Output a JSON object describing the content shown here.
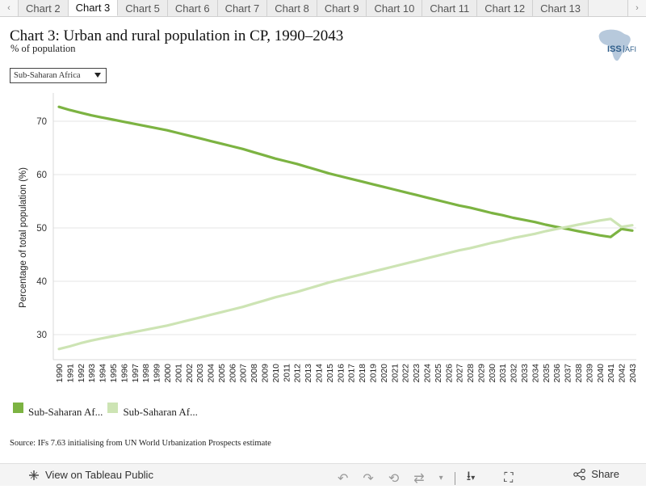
{
  "tabs": {
    "prev_arrow": "‹",
    "next_arrow": "›",
    "items": [
      "Chart 2",
      "Chart 3",
      "Chart 5",
      "Chart 6",
      "Chart 7",
      "Chart 8",
      "Chart 9",
      "Chart 10",
      "Chart 11",
      "Chart 12",
      "Chart 13"
    ],
    "active": "Chart 3"
  },
  "header": {
    "title": "Chart 3: Urban and rural population in CP, 1990–2043",
    "subtitle": "% of population",
    "logo_text": "ISS",
    "logo_text2": "AFI"
  },
  "filter": {
    "selected": "Sub-Saharan Africa"
  },
  "legend": {
    "items": [
      {
        "label": "Sub-Saharan Af...",
        "color": "#7cb342"
      },
      {
        "label": "Sub-Saharan Af...",
        "color": "#cde4b4"
      }
    ]
  },
  "source": "Source: IFs 7.63 initialising from UN World Urbanization Prospects estimate",
  "footer": {
    "view_label": "View on Tableau Public",
    "share_label": "Share"
  },
  "chart_data": {
    "type": "line",
    "title": "Chart 3: Urban and rural population in CP, 1990–2043",
    "ylabel": "Percentage of total population (%)",
    "xlabel": "",
    "ylim": [
      25,
      75
    ],
    "yticks": [
      30,
      40,
      50,
      60,
      70
    ],
    "grid": true,
    "legend": "bottom-left",
    "x": [
      1990,
      1991,
      1992,
      1993,
      1994,
      1995,
      1996,
      1997,
      1998,
      1999,
      2000,
      2001,
      2002,
      2003,
      2004,
      2005,
      2006,
      2007,
      2008,
      2009,
      2010,
      2011,
      2012,
      2013,
      2014,
      2015,
      2016,
      2017,
      2018,
      2019,
      2020,
      2021,
      2022,
      2023,
      2024,
      2025,
      2026,
      2027,
      2028,
      2029,
      2030,
      2031,
      2032,
      2033,
      2034,
      2035,
      2036,
      2037,
      2038,
      2039,
      2040,
      2041,
      2042,
      2043
    ],
    "series": [
      {
        "name": "Sub-Saharan Af...",
        "color": "#7cb342",
        "values": [
          72.7,
          72.1,
          71.6,
          71.1,
          70.7,
          70.3,
          69.9,
          69.5,
          69.1,
          68.7,
          68.3,
          67.8,
          67.3,
          66.8,
          66.3,
          65.8,
          65.3,
          64.8,
          64.2,
          63.6,
          63.0,
          62.5,
          62.0,
          61.4,
          60.8,
          60.2,
          59.7,
          59.2,
          58.7,
          58.2,
          57.7,
          57.2,
          56.7,
          56.2,
          55.7,
          55.2,
          54.7,
          54.2,
          53.8,
          53.3,
          52.8,
          52.4,
          51.9,
          51.5,
          51.1,
          50.6,
          50.2,
          49.8,
          49.4,
          49.0,
          48.6,
          48.3,
          49.8,
          49.5
        ]
      },
      {
        "name": "Sub-Saharan Af...",
        "color": "#cde4b4",
        "values": [
          27.3,
          27.8,
          28.4,
          28.9,
          29.3,
          29.7,
          30.1,
          30.5,
          30.9,
          31.3,
          31.7,
          32.2,
          32.7,
          33.2,
          33.7,
          34.2,
          34.7,
          35.2,
          35.8,
          36.4,
          37.0,
          37.5,
          38.0,
          38.6,
          39.2,
          39.8,
          40.3,
          40.8,
          41.3,
          41.8,
          42.3,
          42.8,
          43.3,
          43.8,
          44.3,
          44.8,
          45.3,
          45.8,
          46.2,
          46.7,
          47.2,
          47.6,
          48.1,
          48.5,
          48.9,
          49.4,
          49.8,
          50.2,
          50.6,
          51.0,
          51.4,
          51.7,
          50.2,
          50.5
        ]
      }
    ]
  }
}
